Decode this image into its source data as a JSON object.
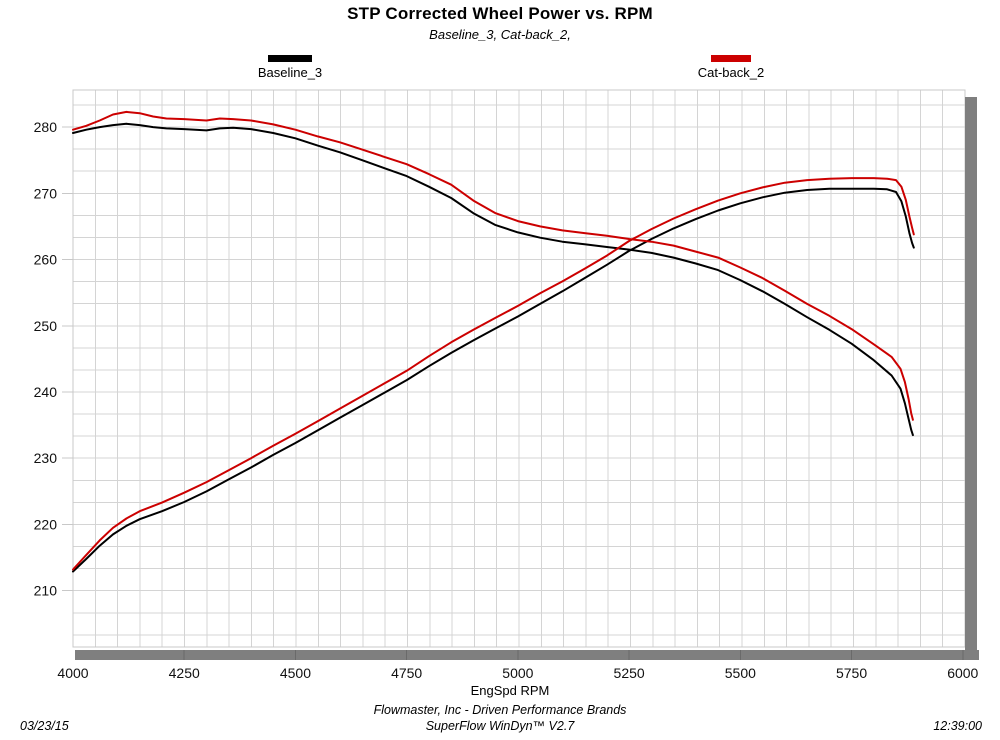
{
  "header": {
    "title": "STP Corrected Wheel Power vs. RPM",
    "subtitle": "Baseline_3, Cat-back_2,"
  },
  "footer": {
    "line1": "Flowmaster, Inc - Driven Performance Brands",
    "line2": "SuperFlow WinDyn™ V2.7",
    "date": "03/23/15",
    "time": "12:39:00"
  },
  "colors": {
    "baseline": "#000000",
    "catback": "#cc0000",
    "grid": "#d4d4d4",
    "plot_border": "#c8c8c8",
    "scrollbar": "#7f7f7f",
    "scrollbar_sep": "#6a6a6a"
  },
  "chart_data": {
    "type": "line",
    "title": "STP Corrected Wheel Power vs. RPM",
    "subtitle": "Baseline_3, Cat-back_2,",
    "xlabel": "EngSpd  RPM",
    "ylabel": "",
    "xlim": [
      4000,
      6005
    ],
    "ylim": [
      201.5,
      285.6
    ],
    "x_ticks": [
      4000,
      4250,
      4500,
      4750,
      5000,
      5250,
      5500,
      5750,
      6000
    ],
    "y_ticks": [
      210,
      220,
      230,
      240,
      250,
      260,
      270,
      280
    ],
    "grid": "on",
    "legend_position": "top",
    "series": [
      {
        "name": "Baseline_3",
        "color": "#000000",
        "rising_curve": [
          [
            4000,
            212.9
          ],
          [
            4030,
            214.8
          ],
          [
            4060,
            216.8
          ],
          [
            4090,
            218.5
          ],
          [
            4120,
            219.8
          ],
          [
            4150,
            220.8
          ],
          [
            4200,
            222.0
          ],
          [
            4250,
            223.4
          ],
          [
            4300,
            225.0
          ],
          [
            4350,
            226.8
          ],
          [
            4400,
            228.6
          ],
          [
            4450,
            230.5
          ],
          [
            4500,
            232.3
          ],
          [
            4550,
            234.2
          ],
          [
            4600,
            236.1
          ],
          [
            4650,
            238.0
          ],
          [
            4700,
            239.9
          ],
          [
            4750,
            241.8
          ],
          [
            4800,
            243.9
          ],
          [
            4850,
            245.9
          ],
          [
            4900,
            247.8
          ],
          [
            4950,
            249.6
          ],
          [
            5000,
            251.4
          ],
          [
            5050,
            253.3
          ],
          [
            5100,
            255.2
          ],
          [
            5150,
            257.2
          ],
          [
            5200,
            259.2
          ],
          [
            5250,
            261.3
          ],
          [
            5300,
            263.1
          ],
          [
            5350,
            264.7
          ],
          [
            5400,
            266.1
          ],
          [
            5450,
            267.4
          ],
          [
            5500,
            268.5
          ],
          [
            5550,
            269.4
          ],
          [
            5600,
            270.1
          ],
          [
            5650,
            270.5
          ],
          [
            5700,
            270.7
          ],
          [
            5750,
            270.7
          ],
          [
            5800,
            270.7
          ],
          [
            5830,
            270.6
          ],
          [
            5850,
            270.2
          ],
          [
            5862,
            268.8
          ],
          [
            5872,
            266.5
          ],
          [
            5880,
            264.0
          ],
          [
            5886,
            262.5
          ],
          [
            5890,
            261.8
          ]
        ],
        "falling_curve": [
          [
            4000,
            279.1
          ],
          [
            4030,
            279.6
          ],
          [
            4060,
            280.0
          ],
          [
            4090,
            280.3
          ],
          [
            4120,
            280.5
          ],
          [
            4150,
            280.3
          ],
          [
            4180,
            280.0
          ],
          [
            4210,
            279.8
          ],
          [
            4250,
            279.7
          ],
          [
            4300,
            279.5
          ],
          [
            4330,
            279.8
          ],
          [
            4360,
            279.9
          ],
          [
            4400,
            279.7
          ],
          [
            4450,
            279.1
          ],
          [
            4500,
            278.3
          ],
          [
            4550,
            277.2
          ],
          [
            4600,
            276.2
          ],
          [
            4650,
            275.0
          ],
          [
            4700,
            273.8
          ],
          [
            4750,
            272.6
          ],
          [
            4800,
            271.0
          ],
          [
            4850,
            269.3
          ],
          [
            4900,
            267.0
          ],
          [
            4950,
            265.2
          ],
          [
            5000,
            264.1
          ],
          [
            5050,
            263.3
          ],
          [
            5100,
            262.7
          ],
          [
            5150,
            262.3
          ],
          [
            5200,
            261.9
          ],
          [
            5250,
            261.5
          ],
          [
            5300,
            261.0
          ],
          [
            5350,
            260.3
          ],
          [
            5400,
            259.4
          ],
          [
            5450,
            258.4
          ],
          [
            5500,
            256.9
          ],
          [
            5550,
            255.2
          ],
          [
            5600,
            253.3
          ],
          [
            5650,
            251.3
          ],
          [
            5700,
            249.4
          ],
          [
            5750,
            247.3
          ],
          [
            5800,
            244.8
          ],
          [
            5840,
            242.5
          ],
          [
            5860,
            240.5
          ],
          [
            5870,
            238.3
          ],
          [
            5878,
            236.0
          ],
          [
            5884,
            234.3
          ],
          [
            5888,
            233.5
          ]
        ]
      },
      {
        "name": "Cat-back_2",
        "color": "#cc0000",
        "rising_curve": [
          [
            4000,
            213.2
          ],
          [
            4030,
            215.4
          ],
          [
            4060,
            217.6
          ],
          [
            4090,
            219.5
          ],
          [
            4120,
            220.9
          ],
          [
            4150,
            222.0
          ],
          [
            4200,
            223.3
          ],
          [
            4250,
            224.8
          ],
          [
            4300,
            226.4
          ],
          [
            4350,
            228.2
          ],
          [
            4400,
            230.0
          ],
          [
            4450,
            231.9
          ],
          [
            4500,
            233.7
          ],
          [
            4550,
            235.6
          ],
          [
            4600,
            237.5
          ],
          [
            4650,
            239.4
          ],
          [
            4700,
            241.3
          ],
          [
            4750,
            243.2
          ],
          [
            4800,
            245.4
          ],
          [
            4850,
            247.5
          ],
          [
            4900,
            249.4
          ],
          [
            4950,
            251.2
          ],
          [
            5000,
            253.0
          ],
          [
            5050,
            254.9
          ],
          [
            5100,
            256.7
          ],
          [
            5150,
            258.6
          ],
          [
            5200,
            260.6
          ],
          [
            5250,
            262.8
          ],
          [
            5300,
            264.6
          ],
          [
            5350,
            266.2
          ],
          [
            5400,
            267.6
          ],
          [
            5450,
            268.9
          ],
          [
            5500,
            270.0
          ],
          [
            5550,
            270.9
          ],
          [
            5600,
            271.6
          ],
          [
            5650,
            272.0
          ],
          [
            5700,
            272.2
          ],
          [
            5750,
            272.3
          ],
          [
            5800,
            272.3
          ],
          [
            5830,
            272.2
          ],
          [
            5850,
            272.0
          ],
          [
            5862,
            271.0
          ],
          [
            5872,
            269.0
          ],
          [
            5880,
            266.5
          ],
          [
            5886,
            264.8
          ],
          [
            5890,
            263.8
          ]
        ],
        "falling_curve": [
          [
            4000,
            279.6
          ],
          [
            4030,
            280.2
          ],
          [
            4060,
            281.0
          ],
          [
            4090,
            281.9
          ],
          [
            4120,
            282.3
          ],
          [
            4150,
            282.1
          ],
          [
            4180,
            281.6
          ],
          [
            4210,
            281.3
          ],
          [
            4250,
            281.2
          ],
          [
            4300,
            281.0
          ],
          [
            4330,
            281.3
          ],
          [
            4360,
            281.2
          ],
          [
            4400,
            281.0
          ],
          [
            4450,
            280.4
          ],
          [
            4500,
            279.6
          ],
          [
            4550,
            278.6
          ],
          [
            4600,
            277.7
          ],
          [
            4650,
            276.6
          ],
          [
            4700,
            275.5
          ],
          [
            4750,
            274.4
          ],
          [
            4800,
            272.9
          ],
          [
            4850,
            271.3
          ],
          [
            4900,
            268.9
          ],
          [
            4950,
            267.0
          ],
          [
            5000,
            265.8
          ],
          [
            5050,
            265.0
          ],
          [
            5100,
            264.4
          ],
          [
            5150,
            264.0
          ],
          [
            5200,
            263.6
          ],
          [
            5250,
            263.1
          ],
          [
            5300,
            262.7
          ],
          [
            5350,
            262.1
          ],
          [
            5400,
            261.2
          ],
          [
            5450,
            260.3
          ],
          [
            5500,
            258.8
          ],
          [
            5550,
            257.2
          ],
          [
            5600,
            255.3
          ],
          [
            5650,
            253.3
          ],
          [
            5700,
            251.5
          ],
          [
            5750,
            249.5
          ],
          [
            5800,
            247.2
          ],
          [
            5840,
            245.3
          ],
          [
            5860,
            243.5
          ],
          [
            5870,
            241.5
          ],
          [
            5878,
            239.0
          ],
          [
            5884,
            236.8
          ],
          [
            5888,
            235.8
          ]
        ]
      }
    ]
  }
}
